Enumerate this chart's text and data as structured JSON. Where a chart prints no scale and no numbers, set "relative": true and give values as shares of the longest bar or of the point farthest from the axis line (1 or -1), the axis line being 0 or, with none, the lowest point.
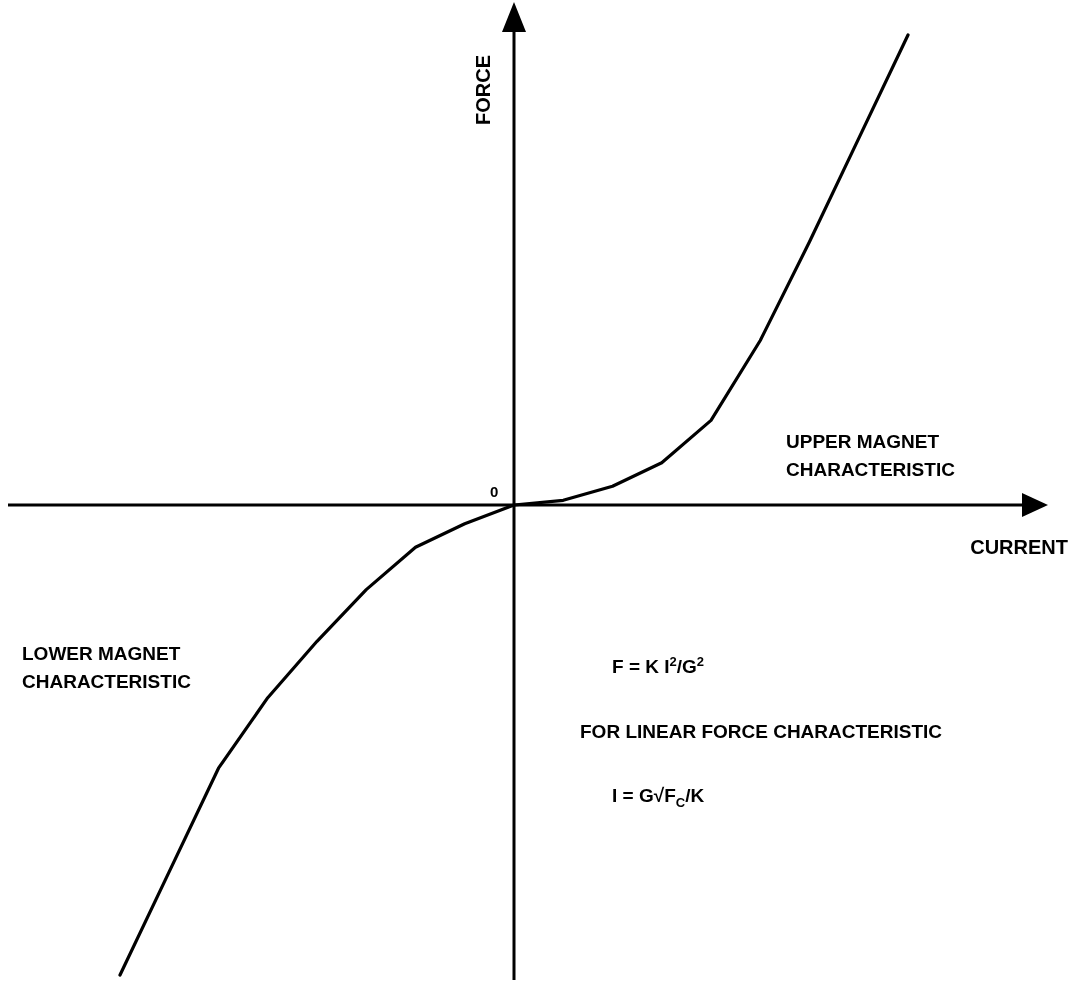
{
  "chart_data": {
    "type": "line",
    "relative": true,
    "xlabel": "CURRENT",
    "ylabel": "FORCE",
    "categories": [
      null,
      null,
      null,
      null,
      null,
      null,
      null,
      null,
      null,
      null,
      null,
      null,
      null,
      null,
      null,
      null,
      null
    ],
    "series": [
      {
        "color": "#000000",
        "values": [
          -1.0,
          -0.78,
          -0.56,
          -0.41,
          -0.29,
          -0.18,
          -0.09,
          -0.04,
          0,
          0.01,
          0.04,
          0.09,
          0.18,
          0.35,
          0.56,
          0.78,
          1.0
        ]
      }
    ],
    "marker": "none",
    "annotations": [
      "0",
      "UPPER MAGNET\nCHARACTERISTIC",
      "LOWER MAGNET\nCHARACTERISTIC",
      "F = K I$^{2}$/G$^{2}$",
      "FOR LINEAR FORCE CHARACTERISTIC",
      "I = G√F$_{C}$/K"
    ]
  }
}
